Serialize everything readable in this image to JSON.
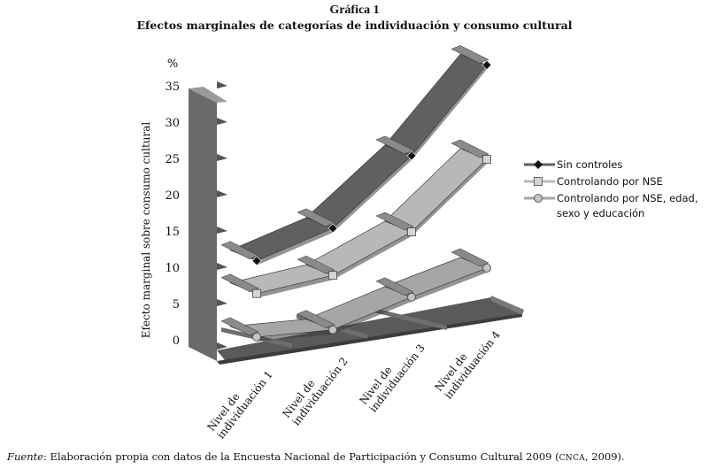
{
  "figure": {
    "number": "Gráfica 1",
    "title": "Efectos marginales de categorías de individuación y consumo cultural"
  },
  "source": {
    "label": "Fuente",
    "text_before": ": Elaboración propia con datos de la Encuesta Nacional de Participación y Consumo Cultural 2009 (",
    "abbr": "CNCA",
    "text_after": ", 2009)."
  },
  "chart_data": {
    "type": "line",
    "style": "3d-ribbon",
    "title": "Efectos marginales de categorías de individuación y consumo cultural",
    "ylabel": "Efecto marginal sobre consumo cultural",
    "yunit": "%",
    "ylim": [
      0,
      35
    ],
    "yticks": [
      0,
      5,
      10,
      15,
      20,
      25,
      30,
      35
    ],
    "categories": [
      {
        "line1": "Nivel de",
        "line2": "individuación 1"
      },
      {
        "line1": "Nivel de",
        "line2": "individuación 2"
      },
      {
        "line1": "Nivel de",
        "line2": "individuación 3"
      },
      {
        "line1": "Nivel de",
        "line2": "individuación 4"
      }
    ],
    "series": [
      {
        "name": "Sin controles",
        "legend_lines": [
          "Sin controles"
        ],
        "marker": "diamond",
        "color": "#606060",
        "values": [
          11,
          15.5,
          25.5,
          38
        ]
      },
      {
        "name": "Controlando por NSE",
        "legend_lines": [
          "Controlando por NSE"
        ],
        "marker": "square",
        "color": "#b8b8b8",
        "values": [
          6.5,
          9,
          15,
          25
        ]
      },
      {
        "name": "Controlando por NSE, edad, sexo y educación",
        "legend_lines": [
          "Controlando por NSE, edad,",
          "sexo y educación"
        ],
        "marker": "circle",
        "color": "#a6a6a6",
        "values": [
          0.5,
          1.5,
          6,
          10
        ]
      }
    ]
  }
}
